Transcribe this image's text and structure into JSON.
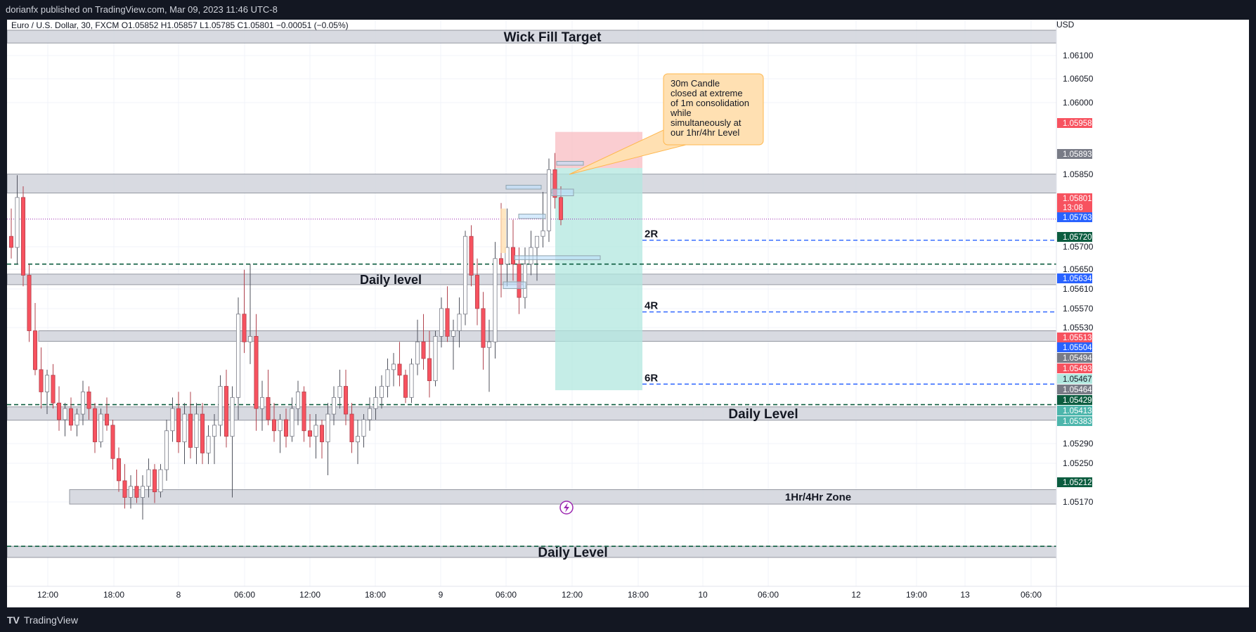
{
  "header": {
    "published": "dorianfx published on TradingView.com, Mar 09, 2023 11:46 UTC-8",
    "symbol_line": "Euro / U.S. Dollar, 30, FXCM  O1.05852  H1.05857  L1.05785  C1.05801  −0.00051 (−0.05%)",
    "currency": "USD"
  },
  "footer": {
    "brand": "TradingView"
  },
  "colors": {
    "up": "#ffffff",
    "up_border": "#787b86",
    "down": "#f7525f",
    "down_border": "#b2434e",
    "zone_fill": "#d1d4dc",
    "green_dash": "#0b5c3f",
    "blue_dash": "#2962ff",
    "stop_fill": "#f8bcc1",
    "target_fill": "#b2e7df",
    "callout_fill": "#ffe0b2",
    "callout_border": "#ffb74d",
    "current_line": "#9c27b0"
  },
  "chart_data": {
    "type": "candlestick",
    "symbol": "EURUSD",
    "timeframe": "30",
    "x_tick_labels": [
      "12:00",
      "18:00",
      "8",
      "06:00",
      "12:00",
      "18:00",
      "9",
      "06:00",
      "12:00",
      "18:00",
      "10",
      "06:00",
      "12",
      "19:00",
      "13",
      "06:00"
    ],
    "y_tick_labels": [
      "1.06100",
      "1.06050",
      "1.06000",
      "1.05850",
      "1.05700",
      "1.05650",
      "1.05610",
      "1.05570",
      "1.05530",
      "1.05290",
      "1.05250",
      "1.05170"
    ],
    "ylim": [
      1.0514,
      1.0616
    ],
    "last_price": 1.05801,
    "countdown": "13:08",
    "zones": [
      {
        "label": "Wick Fill Target",
        "low": 1.06118,
        "high": 1.06141
      },
      {
        "label": "",
        "low": 1.05848,
        "high": 1.05882
      },
      {
        "label": "Daily level",
        "low": 1.05683,
        "high": 1.05702
      },
      {
        "label": "",
        "low": 1.05581,
        "high": 1.056
      },
      {
        "label": "Daily Level",
        "low": 1.05439,
        "high": 1.05463
      },
      {
        "label": "1Hr/4Hr Zone",
        "low": 1.05288,
        "high": 1.05314
      },
      {
        "label": "Daily Level",
        "low": 1.05192,
        "high": 1.05212
      }
    ],
    "horizontal_lines": [
      {
        "price": 1.0572,
        "style": "green-dash"
      },
      {
        "price": 1.05467,
        "style": "green-dash"
      },
      {
        "price": 1.05212,
        "style": "green-dash"
      },
      {
        "price": 1.05763,
        "style": "blue-dash",
        "label": "2R"
      },
      {
        "price": 1.05634,
        "style": "blue-dash",
        "label": "4R"
      },
      {
        "price": 1.05504,
        "style": "blue-dash",
        "label": "6R"
      }
    ],
    "position": {
      "entry": 1.05893,
      "stop": 1.05958,
      "target": 1.05493
    },
    "price_tags": [
      {
        "value": "1.05958",
        "color": "#f7525f"
      },
      {
        "value": "1.05893",
        "color": "#787b86"
      },
      {
        "value": "1.05801",
        "color": "#f7525f"
      },
      {
        "value": "1.05763",
        "color": "#2962ff"
      },
      {
        "value": "1.05720",
        "color": "#0b5c3f"
      },
      {
        "value": "1.05634",
        "color": "#2962ff"
      },
      {
        "value": "1.05513",
        "color": "#f7525f"
      },
      {
        "value": "1.05504",
        "color": "#2962ff"
      },
      {
        "value": "1.05494",
        "color": "#787b86"
      },
      {
        "value": "1.05493",
        "color": "#f7525f"
      },
      {
        "value": "1.05467",
        "color": "#b2e7df"
      },
      {
        "value": "1.05464",
        "color": "#787b86"
      },
      {
        "value": "1.05429",
        "color": "#0b5c3f"
      },
      {
        "value": "1.05413",
        "color": "#4db6ac"
      },
      {
        "value": "1.05383",
        "color": "#4db6ac"
      },
      {
        "value": "1.05212",
        "color": "#0b5c3f"
      }
    ],
    "annotation": [
      "30m Candle",
      "closed at extreme",
      "of 1m consolidation",
      "while",
      "simultaneously at",
      "our 1hr/4hr Level"
    ],
    "candles": [
      [
        1.0577,
        1.0582,
        1.0573,
        1.0575
      ],
      [
        1.0575,
        1.0588,
        1.0572,
        1.0584
      ],
      [
        1.0584,
        1.0586,
        1.0568,
        1.057
      ],
      [
        1.057,
        1.0572,
        1.0558,
        1.056
      ],
      [
        1.056,
        1.0565,
        1.0552,
        1.0553
      ],
      [
        1.0553,
        1.0557,
        1.0546,
        1.0549
      ],
      [
        1.0549,
        1.0553,
        1.0545,
        1.0552
      ],
      [
        1.0552,
        1.0554,
        1.0546,
        1.0547
      ],
      [
        1.0547,
        1.055,
        1.0542,
        1.0544
      ],
      [
        1.0544,
        1.0547,
        1.0541,
        1.0546
      ],
      [
        1.0546,
        1.0548,
        1.0542,
        1.0543
      ],
      [
        1.0543,
        1.0546,
        1.0541,
        1.0545
      ],
      [
        1.0545,
        1.0551,
        1.0543,
        1.0549
      ],
      [
        1.0549,
        1.055,
        1.0544,
        1.0546
      ],
      [
        1.0546,
        1.0547,
        1.0538,
        1.054
      ],
      [
        1.054,
        1.0546,
        1.0539,
        1.0545
      ],
      [
        1.0545,
        1.0548,
        1.0542,
        1.0543
      ],
      [
        1.0543,
        1.0544,
        1.0535,
        1.0537
      ],
      [
        1.0537,
        1.0539,
        1.0531,
        1.0533
      ],
      [
        1.0533,
        1.0536,
        1.0528,
        1.053
      ],
      [
        1.053,
        1.0534,
        1.0528,
        1.0532
      ],
      [
        1.0532,
        1.0535,
        1.0529,
        1.053
      ],
      [
        1.053,
        1.0534,
        1.0526,
        1.0532
      ],
      [
        1.0532,
        1.0537,
        1.053,
        1.0535
      ],
      [
        1.0535,
        1.0536,
        1.0529,
        1.0531
      ],
      [
        1.0531,
        1.0536,
        1.053,
        1.0535
      ],
      [
        1.0535,
        1.0544,
        1.0533,
        1.0542
      ],
      [
        1.0542,
        1.0548,
        1.054,
        1.0546
      ],
      [
        1.0546,
        1.0549,
        1.0538,
        1.054
      ],
      [
        1.054,
        1.0547,
        1.0536,
        1.0545
      ],
      [
        1.0545,
        1.0549,
        1.0537,
        1.0539
      ],
      [
        1.0539,
        1.0547,
        1.0536,
        1.0545
      ],
      [
        1.0545,
        1.0547,
        1.0536,
        1.0538
      ],
      [
        1.0538,
        1.0543,
        1.0536,
        1.0541
      ],
      [
        1.0541,
        1.0545,
        1.0536,
        1.0543
      ],
      [
        1.0543,
        1.0552,
        1.0541,
        1.055
      ],
      [
        1.055,
        1.0553,
        1.0539,
        1.0541
      ],
      [
        1.0541,
        1.055,
        1.053,
        1.0548
      ],
      [
        1.0548,
        1.0566,
        1.0544,
        1.0563
      ],
      [
        1.0563,
        1.0571,
        1.0556,
        1.0558
      ],
      [
        1.0558,
        1.0572,
        1.0554,
        1.0559
      ],
      [
        1.0559,
        1.0563,
        1.0542,
        1.0546
      ],
      [
        1.0546,
        1.0551,
        1.0542,
        1.0548
      ],
      [
        1.0548,
        1.0553,
        1.0543,
        1.0544
      ],
      [
        1.0544,
        1.0547,
        1.054,
        1.0542
      ],
      [
        1.0542,
        1.0545,
        1.0538,
        1.0544
      ],
      [
        1.0544,
        1.0546,
        1.0539,
        1.0541
      ],
      [
        1.0541,
        1.0548,
        1.054,
        1.0546
      ],
      [
        1.0546,
        1.0551,
        1.0543,
        1.0549
      ],
      [
        1.0549,
        1.055,
        1.054,
        1.0542
      ],
      [
        1.0542,
        1.0545,
        1.0539,
        1.0541
      ],
      [
        1.0541,
        1.0545,
        1.0537,
        1.0543
      ],
      [
        1.0543,
        1.0544,
        1.0537,
        1.054
      ],
      [
        1.054,
        1.0547,
        1.0534,
        1.0545
      ],
      [
        1.0545,
        1.055,
        1.0543,
        1.0548
      ],
      [
        1.0548,
        1.0553,
        1.0546,
        1.055
      ],
      [
        1.055,
        1.0553,
        1.0543,
        1.0545
      ],
      [
        1.0545,
        1.0547,
        1.0538,
        1.054
      ],
      [
        1.054,
        1.0544,
        1.0536,
        1.0541
      ],
      [
        1.0541,
        1.0545,
        1.0539,
        1.0544
      ],
      [
        1.0544,
        1.0548,
        1.0542,
        1.0546
      ],
      [
        1.0546,
        1.055,
        1.0544,
        1.0548
      ],
      [
        1.0548,
        1.0552,
        1.0546,
        1.055
      ],
      [
        1.055,
        1.0555,
        1.0548,
        1.0553
      ],
      [
        1.0553,
        1.0556,
        1.055,
        1.0554
      ],
      [
        1.0554,
        1.0558,
        1.055,
        1.0552
      ],
      [
        1.0552,
        1.0553,
        1.0547,
        1.0548
      ],
      [
        1.0548,
        1.0555,
        1.0547,
        1.0554
      ],
      [
        1.0554,
        1.0562,
        1.0552,
        1.0558
      ],
      [
        1.0558,
        1.0563,
        1.0553,
        1.0555
      ],
      [
        1.0555,
        1.056,
        1.0548,
        1.0551
      ],
      [
        1.0551,
        1.056,
        1.055,
        1.0559
      ],
      [
        1.0559,
        1.0566,
        1.0557,
        1.0564
      ],
      [
        1.0564,
        1.0568,
        1.0558,
        1.0559
      ],
      [
        1.0559,
        1.0562,
        1.0553,
        1.056
      ],
      [
        1.056,
        1.0566,
        1.0557,
        1.0563
      ],
      [
        1.0563,
        1.0578,
        1.0561,
        1.0577
      ],
      [
        1.0577,
        1.0579,
        1.0568,
        1.057
      ],
      [
        1.057,
        1.0573,
        1.0561,
        1.0564
      ],
      [
        1.0564,
        1.0567,
        1.0553,
        1.0557
      ],
      [
        1.0557,
        1.0562,
        1.0549,
        1.0558
      ],
      [
        1.0558,
        1.0576,
        1.0555,
        1.0573
      ],
      [
        1.0573,
        1.0583,
        1.0566,
        1.0572
      ],
      [
        1.0572,
        1.0582,
        1.0568,
        1.0575
      ],
      [
        1.0575,
        1.058,
        1.0569,
        1.0572
      ],
      [
        1.0572,
        1.0575,
        1.0563,
        1.0566
      ],
      [
        1.0566,
        1.0575,
        1.0564,
        1.0572
      ],
      [
        1.0572,
        1.0578,
        1.057,
        1.0575
      ],
      [
        1.0575,
        1.0577,
        1.0569,
        1.0577
      ],
      [
        1.0577,
        1.0585,
        1.0575,
        1.0578
      ],
      [
        1.0578,
        1.0591,
        1.0576,
        1.0589
      ],
      [
        1.0589,
        1.0592,
        1.0582,
        1.0584
      ],
      [
        1.0584,
        1.0586,
        1.0579,
        1.058
      ]
    ]
  }
}
